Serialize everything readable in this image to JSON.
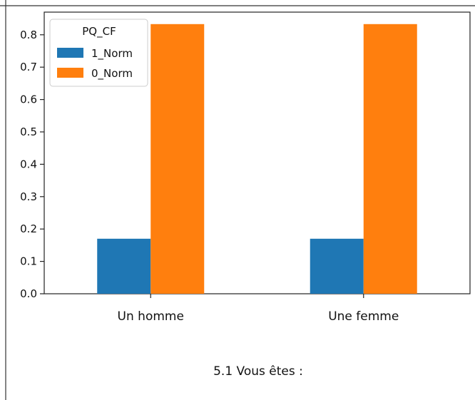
{
  "chart_data": {
    "type": "bar",
    "categories": [
      "Un homme",
      "Une femme"
    ],
    "series": [
      {
        "name": "1_Norm",
        "values": [
          0.17,
          0.17
        ],
        "color": "#1f77b4"
      },
      {
        "name": "0_Norm",
        "values": [
          0.833,
          0.833
        ],
        "color": "#ff7f0e"
      }
    ],
    "xlabel": "5.1 Vous êtes :",
    "ylabel": "",
    "ylim": [
      0,
      0.87
    ],
    "yticks": [
      "0.0",
      "0.1",
      "0.2",
      "0.3",
      "0.4",
      "0.5",
      "0.6",
      "0.7",
      "0.8"
    ],
    "legend": {
      "title": "PQ_CF",
      "placement": "top-left"
    },
    "grid": false
  }
}
